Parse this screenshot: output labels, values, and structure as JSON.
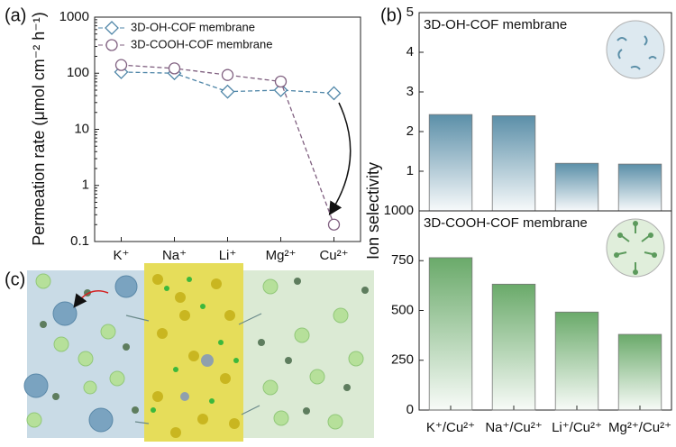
{
  "chart_data": [
    {
      "type": "line",
      "panel_label": "(a)",
      "y_label": "Permeation rate (μmol cm⁻² h⁻¹)",
      "log_scale": true,
      "categories": [
        "K⁺",
        "Na⁺",
        "Li⁺",
        "Mg²⁺",
        "Cu²⁺"
      ],
      "series": [
        {
          "name": "3D-OH-COF membrane",
          "color": "#4f86a8",
          "marker": "diamond",
          "values": [
            105,
            100,
            47,
            50,
            44
          ]
        },
        {
          "name": "3D-COOH-COF membrane",
          "color": "#806080",
          "marker": "circle",
          "values": [
            140,
            122,
            93,
            71,
            0.2
          ]
        }
      ],
      "ylim": [
        0.1,
        1000
      ],
      "yticks": [
        0.1,
        1,
        10,
        100,
        1000
      ],
      "legend": "upper left"
    },
    {
      "type": "bar",
      "panel_label": "(b)",
      "y_label": "Ion selectivity",
      "annotation": "3D-OH-COF membrane",
      "values": [
        2.43,
        2.4,
        1.2,
        1.18
      ],
      "color": "#5b8fa8",
      "ylim": [
        0,
        5
      ],
      "yticks": [
        1,
        2,
        3,
        4,
        5
      ]
    },
    {
      "type": "bar",
      "annotation": "3D-COOH-COF membrane",
      "categories": [
        "K⁺/Cu²⁺",
        "Na⁺/Cu²⁺",
        "Li⁺/Cu²⁺",
        "Mg²⁺/Cu²⁺"
      ],
      "values": [
        765,
        632,
        492,
        380
      ],
      "color": "#6aaa6a",
      "ylim": [
        0,
        1000
      ],
      "yticks": [
        0,
        250,
        500,
        750,
        1000
      ]
    }
  ],
  "panel_c_label": "(c)"
}
